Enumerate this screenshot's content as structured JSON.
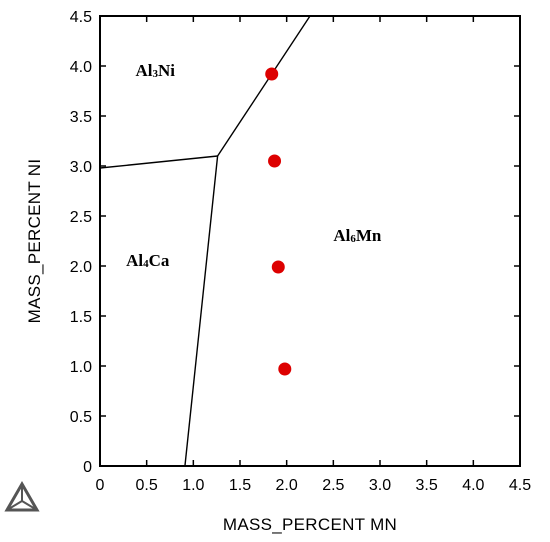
{
  "chart_data": {
    "type": "scatter",
    "xlabel": "MASS_PERCENT MN",
    "ylabel": "MASS_PERCENT NI",
    "xlim": [
      0,
      4.5
    ],
    "ylim": [
      0,
      4.5
    ],
    "xticks": [
      "0",
      "0.5",
      "1.0",
      "1.5",
      "2.0",
      "2.5",
      "3.0",
      "3.5",
      "4.0",
      "4.5"
    ],
    "yticks": [
      "0",
      "0.5",
      "1.0",
      "1.5",
      "2.0",
      "2.5",
      "3.0",
      "3.5",
      "4.0",
      "4.5"
    ],
    "grid": false,
    "points": [
      {
        "x": 1.84,
        "y": 3.92
      },
      {
        "x": 1.87,
        "y": 3.05
      },
      {
        "x": 1.91,
        "y": 1.99
      },
      {
        "x": 1.98,
        "y": 0.97
      }
    ],
    "point_color": "#dd0000",
    "phase_boundaries": [
      [
        [
          0,
          2.98
        ],
        [
          1.26,
          3.1
        ]
      ],
      [
        [
          1.26,
          3.1
        ],
        [
          2.25,
          4.5
        ]
      ],
      [
        [
          1.26,
          3.1
        ],
        [
          0.91,
          0
        ]
      ]
    ],
    "region_labels": [
      {
        "main": "Al",
        "sub": "3",
        "rest": "Ni",
        "x": 0.38,
        "y": 3.9
      },
      {
        "main": "Al",
        "sub": "4",
        "rest": "Ca",
        "x": 0.28,
        "y": 2.0
      },
      {
        "main": "Al",
        "sub": "6",
        "rest": "Mn",
        "x": 2.5,
        "y": 2.25
      }
    ]
  },
  "logo": {
    "name": "thermo-calc-logo-icon"
  }
}
